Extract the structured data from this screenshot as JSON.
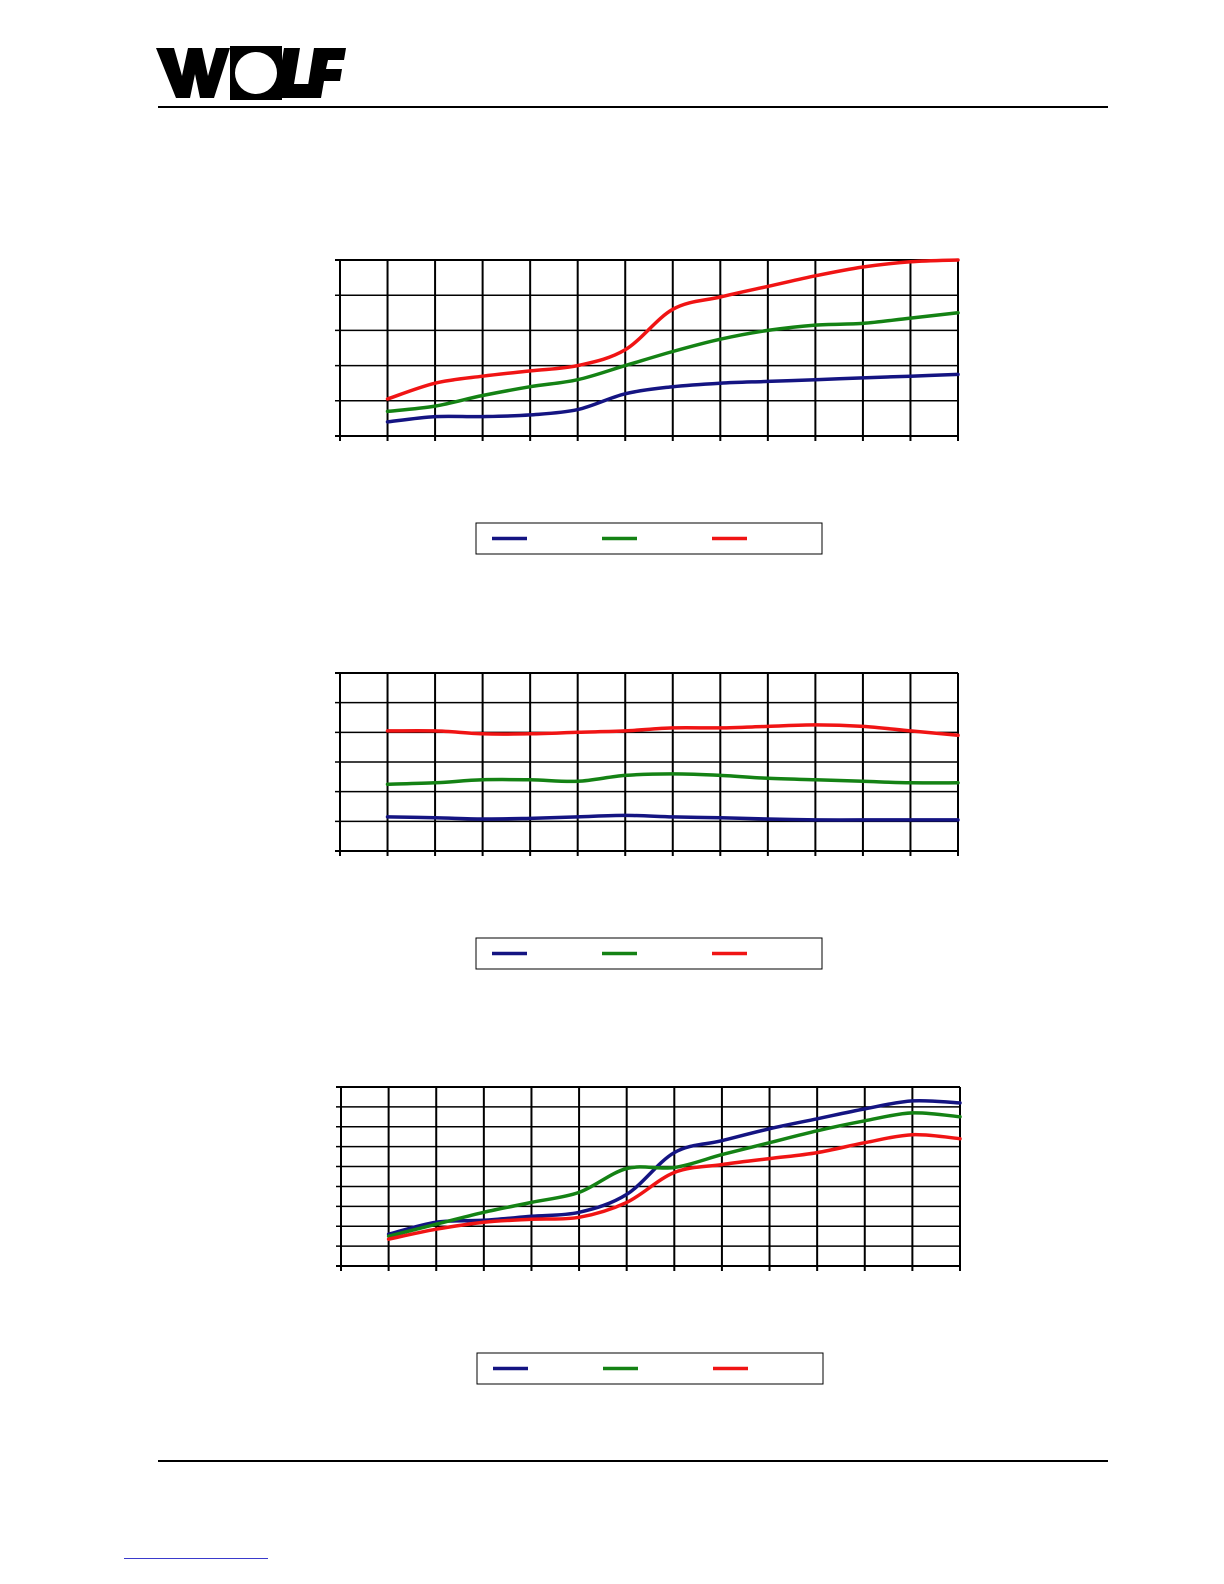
{
  "logo": {
    "text": "WOLF",
    "icon": "wolf-logo"
  },
  "colors": {
    "series_1": "#141482",
    "series_2": "#148214",
    "series_3": "#f01414",
    "grid": "#000000"
  },
  "chart_data": [
    {
      "type": "line",
      "grid": true,
      "legend_position": "bottom",
      "x": [
        0,
        1,
        2,
        3,
        4,
        5,
        6,
        7,
        8,
        9,
        10,
        11,
        12
      ],
      "xlim": [
        -1,
        12
      ],
      "ylim": [
        0,
        5
      ],
      "y_gridlines": 5,
      "series": [
        {
          "color": "#141482",
          "values": [
            0.4,
            0.55,
            0.55,
            0.6,
            0.75,
            1.2,
            1.4,
            1.5,
            1.55,
            1.6,
            1.65,
            1.7,
            1.75
          ]
        },
        {
          "color": "#148214",
          "values": [
            0.7,
            0.85,
            1.15,
            1.4,
            1.6,
            2.0,
            2.4,
            2.75,
            3.0,
            3.15,
            3.2,
            3.35,
            3.5
          ]
        },
        {
          "color": "#f01414",
          "values": [
            1.05,
            1.5,
            1.7,
            1.85,
            2.0,
            2.45,
            3.6,
            3.95,
            4.25,
            4.55,
            4.8,
            4.95,
            5.0
          ]
        }
      ]
    },
    {
      "type": "line",
      "grid": true,
      "legend_position": "bottom",
      "x": [
        0,
        1,
        2,
        3,
        4,
        5,
        6,
        7,
        8,
        9,
        10,
        11,
        12
      ],
      "xlim": [
        -1,
        12
      ],
      "ylim": [
        0,
        6
      ],
      "y_gridlines": 6,
      "series": [
        {
          "color": "#141482",
          "values": [
            1.15,
            1.12,
            1.08,
            1.1,
            1.15,
            1.2,
            1.15,
            1.12,
            1.08,
            1.05,
            1.05,
            1.05,
            1.05
          ]
        },
        {
          "color": "#148214",
          "values": [
            2.25,
            2.3,
            2.4,
            2.4,
            2.35,
            2.55,
            2.6,
            2.55,
            2.45,
            2.4,
            2.35,
            2.3,
            2.3
          ]
        },
        {
          "color": "#f01414",
          "values": [
            4.05,
            4.05,
            3.95,
            3.95,
            4.0,
            4.05,
            4.15,
            4.15,
            4.2,
            4.25,
            4.2,
            4.05,
            3.9
          ]
        }
      ]
    },
    {
      "type": "line",
      "grid": true,
      "legend_position": "bottom",
      "x": [
        0,
        1,
        2,
        3,
        4,
        5,
        6,
        7,
        8,
        9,
        10,
        11,
        12
      ],
      "xlim": [
        -1,
        12
      ],
      "ylim": [
        0,
        9
      ],
      "y_gridlines": 9,
      "series": [
        {
          "color": "#141482",
          "values": [
            1.6,
            2.2,
            2.3,
            2.5,
            2.7,
            3.6,
            5.7,
            6.3,
            6.9,
            7.4,
            7.9,
            8.3,
            8.2
          ]
        },
        {
          "color": "#148214",
          "values": [
            1.5,
            2.1,
            2.7,
            3.2,
            3.7,
            4.9,
            4.95,
            5.6,
            6.2,
            6.8,
            7.3,
            7.7,
            7.5
          ]
        },
        {
          "color": "#f01414",
          "values": [
            1.35,
            1.85,
            2.2,
            2.35,
            2.45,
            3.2,
            4.7,
            5.1,
            5.4,
            5.7,
            6.2,
            6.6,
            6.4
          ]
        }
      ]
    }
  ]
}
